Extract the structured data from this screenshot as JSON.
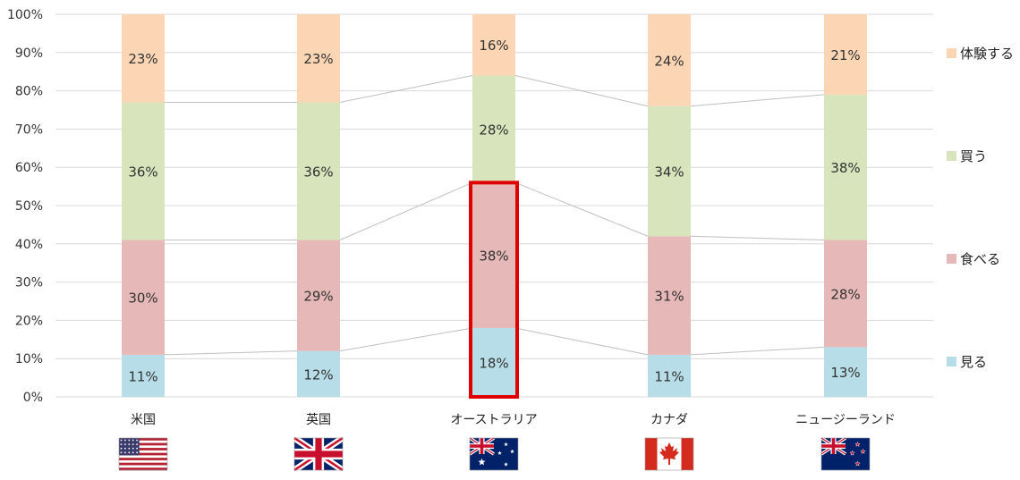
{
  "chart_data": {
    "type": "bar",
    "stacked": true,
    "categories": [
      "米国",
      "英国",
      "オーストラリア",
      "カナダ",
      "ニュージーランド"
    ],
    "series": [
      {
        "name": "見る",
        "color": "#b7dde8",
        "values": [
          11,
          12,
          18,
          11,
          13
        ]
      },
      {
        "name": "食べる",
        "color": "#e6b8b7",
        "values": [
          30,
          29,
          38,
          31,
          28
        ]
      },
      {
        "name": "買う",
        "color": "#d8e4bc",
        "values": [
          36,
          36,
          28,
          34,
          38
        ]
      },
      {
        "name": "体験する",
        "color": "#fcd5b4",
        "values": [
          23,
          23,
          16,
          24,
          21
        ]
      }
    ],
    "data_labels": [
      [
        "11%",
        "12%",
        "18%",
        "11%",
        "13%"
      ],
      [
        "30%",
        "29%",
        "38%",
        "31%",
        "28%"
      ],
      [
        "36%",
        "36%",
        "28%",
        "34%",
        "38%"
      ],
      [
        "23%",
        "23%",
        "16%",
        "24%",
        "21%"
      ]
    ],
    "y_ticks": [
      "0%",
      "10%",
      "20%",
      "30%",
      "40%",
      "50%",
      "60%",
      "70%",
      "80%",
      "90%",
      "100%"
    ],
    "ylim": [
      0,
      100
    ],
    "grid": true,
    "legend_position": "right",
    "series_lines": true,
    "highlight": {
      "category": "オーストラリア",
      "series": [
        "見る",
        "食べる"
      ],
      "color": "#e00000"
    },
    "flags": [
      {
        "category": "米国",
        "icon": "us-flag-icon"
      },
      {
        "category": "英国",
        "icon": "uk-flag-icon"
      },
      {
        "category": "オーストラリア",
        "icon": "australia-flag-icon"
      },
      {
        "category": "カナダ",
        "icon": "canada-flag-icon"
      },
      {
        "category": "ニュージーランド",
        "icon": "new-zealand-flag-icon"
      }
    ]
  }
}
